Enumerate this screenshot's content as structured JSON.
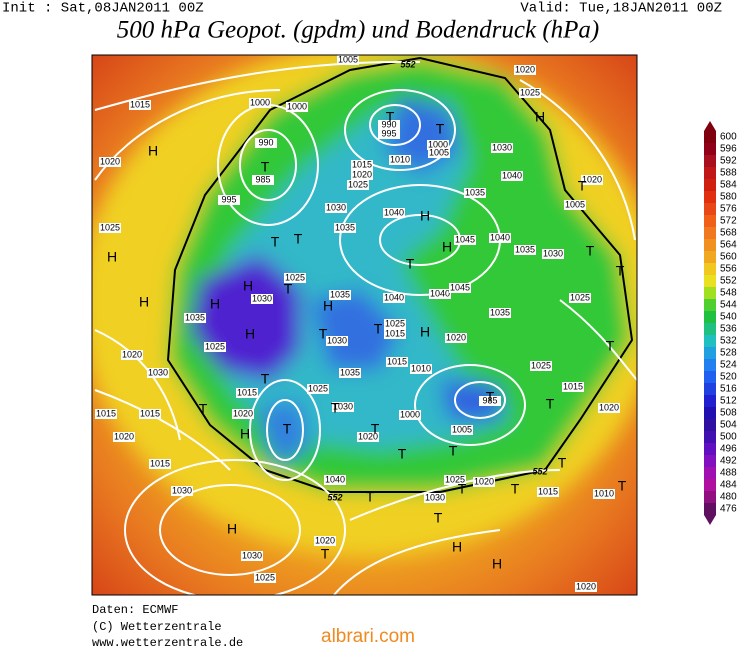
{
  "header": {
    "init": "Init : Sat,08JAN2011 00Z",
    "valid": "Valid: Tue,18JAN2011 00Z",
    "title": "500 hPa Geopot. (gpdm) und Bodendruck (hPa)"
  },
  "colorbar": {
    "ticks": [
      600,
      596,
      592,
      588,
      584,
      580,
      576,
      572,
      568,
      564,
      560,
      556,
      552,
      548,
      544,
      540,
      536,
      532,
      528,
      524,
      520,
      516,
      512,
      508,
      504,
      500,
      496,
      492,
      488,
      484,
      480,
      476
    ],
    "colors": [
      "#800010",
      "#900018",
      "#a81020",
      "#c01818",
      "#d02010",
      "#e03010",
      "#e84818",
      "#f06018",
      "#f07820",
      "#f09020",
      "#f0a820",
      "#f0c820",
      "#e8e020",
      "#a0e020",
      "#50d030",
      "#20c040",
      "#20c080",
      "#20c0c0",
      "#20a0e0",
      "#2080f0",
      "#2060f0",
      "#2040e0",
      "#2020d0",
      "#2010b0",
      "#3010a0",
      "#4010b0",
      "#6010c0",
      "#8010c0",
      "#a010b0",
      "#b010a0",
      "#901080",
      "#601060"
    ]
  },
  "map": {
    "isobar_labels": [
      1005,
      1020,
      1025,
      1015,
      1000,
      1000,
      990,
      995,
      1000,
      1030,
      1005,
      1010,
      990,
      985,
      1015,
      1020,
      1025,
      1035,
      1040,
      1020,
      1020,
      1005,
      995,
      1025,
      1030,
      1035,
      1040,
      1045,
      1040,
      1035,
      1030,
      1025,
      1040,
      1040,
      1045,
      1035,
      1035,
      1030,
      1025,
      1035,
      1025,
      1020,
      1030,
      1015,
      1015,
      1020,
      1015,
      1030,
      1020,
      1030,
      1025,
      1025,
      1015,
      1020,
      1030,
      1015,
      1010,
      1035,
      1025,
      1015,
      1020,
      1030,
      1000,
      1020,
      1005,
      985,
      1025,
      1015,
      1020,
      1015,
      1010,
      1030,
      1020,
      1025,
      1040,
      1020
    ],
    "contour_labels": [
      552,
      552,
      552
    ],
    "centers": [
      "H",
      "T",
      "T",
      "T",
      "H",
      "T",
      "H",
      "H",
      "T",
      "T",
      "T",
      "H",
      "H",
      "H",
      "H",
      "H",
      "T",
      "T",
      "H",
      "H",
      "T",
      "T",
      "T",
      "T",
      "T",
      "T",
      "H",
      "T",
      "T",
      "T",
      "T",
      "T",
      "T",
      "T",
      "T",
      "T",
      "T",
      "T",
      "H",
      "H",
      "H",
      "T",
      "T",
      "T"
    ]
  },
  "footer": {
    "source": "Daten: ECMWF",
    "copyright": "(C) Wetterzentrale",
    "url": "www.wetterzentrale.de",
    "watermark": "albrari.com"
  }
}
